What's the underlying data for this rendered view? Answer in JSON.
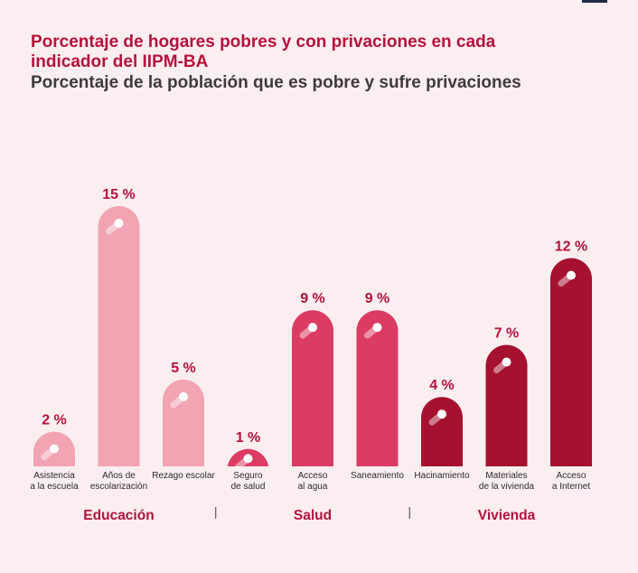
{
  "chart_data": {
    "type": "bar",
    "title": "Porcentaje de hogares pobres y con privaciones en cada indicador del IIPM-BA",
    "subtitle": "Porcentaje de la población que es pobre y sufre privaciones",
    "categories": [
      [
        "Asistencia",
        "a la escuela"
      ],
      [
        "Años de",
        "escolarización"
      ],
      [
        "Rezago escolar"
      ],
      [
        "Seguro",
        "de salud"
      ],
      [
        "Acceso",
        "al agua"
      ],
      [
        "Saneamiento"
      ],
      [
        "Hacinamiento"
      ],
      [
        "Materiales",
        "de la vivienda"
      ],
      [
        "Acceso",
        "a Internet"
      ]
    ],
    "values": [
      2,
      15,
      5,
      1,
      9,
      9,
      4,
      7,
      12
    ],
    "value_labels": [
      "2 %",
      "15 %",
      "5 %",
      "1 %",
      "9 %",
      "9 %",
      "4 %",
      "7 %",
      "12 %"
    ],
    "groups": [
      {
        "label": "Educación",
        "start": 0,
        "end": 2,
        "color": "#f2a4b2"
      },
      {
        "label": "Salud",
        "start": 3,
        "end": 5,
        "color": "#dc3b63"
      },
      {
        "label": "Vivienda",
        "start": 6,
        "end": 8,
        "color": "#a5112e"
      }
    ],
    "ylim": [
      0,
      15
    ],
    "grid": false,
    "legend": "none"
  }
}
